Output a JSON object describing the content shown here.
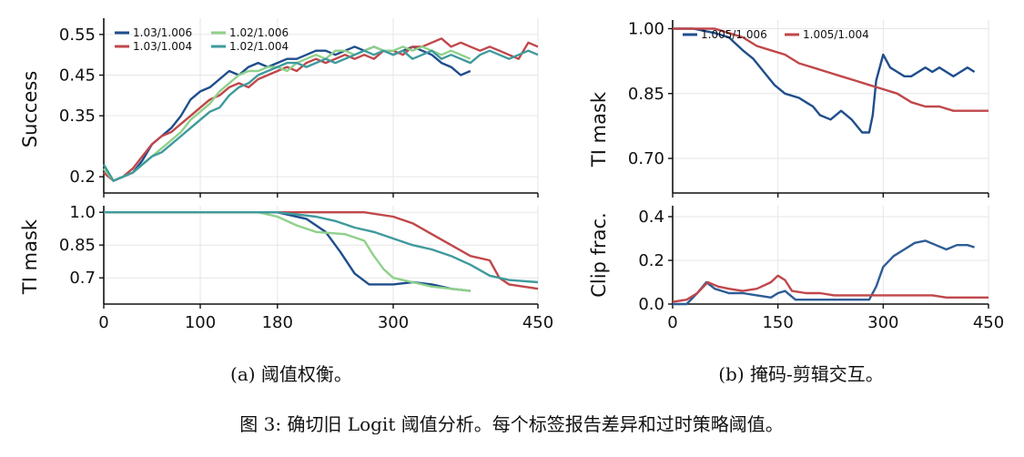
{
  "colors": {
    "dark_blue": "#1f4e8c",
    "red": "#c0474a",
    "light_green": "#8fd18a",
    "teal": "#3f9a9c",
    "blue_b": "#2e5d96",
    "red_b": "#c0474a"
  },
  "chart_data": [
    {
      "panel": "a-top",
      "type": "line",
      "ylabel": "Success",
      "xlim": [
        0,
        450
      ],
      "ylim": [
        0.16,
        0.59
      ],
      "yticks": [
        0.2,
        0.35,
        0.45,
        0.55
      ],
      "ytick_labels": [
        "0.2",
        "0.35",
        "0.45",
        "0.55"
      ],
      "legend_position": "top-left",
      "series": [
        {
          "name": "1.03/1.006",
          "color": "#1f4e8c",
          "x": [
            0,
            10,
            20,
            30,
            40,
            50,
            60,
            70,
            80,
            90,
            100,
            110,
            120,
            130,
            140,
            150,
            160,
            170,
            180,
            190,
            200,
            210,
            220,
            230,
            240,
            250,
            260,
            270,
            280,
            290,
            300,
            310,
            320,
            330,
            340,
            350,
            360,
            370,
            380
          ],
          "y": [
            0.22,
            0.19,
            0.2,
            0.21,
            0.24,
            0.28,
            0.3,
            0.32,
            0.35,
            0.39,
            0.41,
            0.42,
            0.44,
            0.46,
            0.45,
            0.47,
            0.48,
            0.47,
            0.48,
            0.49,
            0.49,
            0.5,
            0.51,
            0.51,
            0.5,
            0.51,
            0.52,
            0.51,
            0.52,
            0.51,
            0.5,
            0.51,
            0.52,
            0.51,
            0.5,
            0.48,
            0.47,
            0.45,
            0.46
          ]
        },
        {
          "name": "1.03/1.004",
          "color": "#c0474a",
          "x": [
            0,
            10,
            20,
            30,
            40,
            50,
            60,
            70,
            80,
            90,
            100,
            110,
            120,
            130,
            140,
            150,
            160,
            170,
            180,
            190,
            200,
            210,
            220,
            230,
            240,
            250,
            260,
            270,
            280,
            290,
            300,
            310,
            320,
            330,
            340,
            350,
            360,
            370,
            380,
            390,
            400,
            410,
            420,
            430,
            440,
            450
          ],
          "y": [
            0.21,
            0.19,
            0.2,
            0.22,
            0.25,
            0.28,
            0.3,
            0.31,
            0.33,
            0.35,
            0.37,
            0.39,
            0.4,
            0.42,
            0.43,
            0.42,
            0.44,
            0.45,
            0.46,
            0.47,
            0.46,
            0.48,
            0.49,
            0.48,
            0.49,
            0.5,
            0.49,
            0.5,
            0.49,
            0.51,
            0.51,
            0.5,
            0.52,
            0.52,
            0.53,
            0.54,
            0.52,
            0.53,
            0.52,
            0.51,
            0.52,
            0.51,
            0.5,
            0.49,
            0.53,
            0.52
          ]
        },
        {
          "name": "1.02/1.006",
          "color": "#8fd18a",
          "x": [
            0,
            10,
            20,
            30,
            40,
            50,
            60,
            70,
            80,
            90,
            100,
            110,
            120,
            130,
            140,
            150,
            160,
            170,
            180,
            190,
            200,
            210,
            220,
            230,
            240,
            250,
            260,
            270,
            280,
            290,
            300,
            310,
            320,
            330,
            340,
            350,
            360,
            370,
            380
          ],
          "y": [
            0.22,
            0.19,
            0.2,
            0.21,
            0.23,
            0.25,
            0.27,
            0.29,
            0.31,
            0.34,
            0.36,
            0.38,
            0.41,
            0.43,
            0.45,
            0.46,
            0.46,
            0.47,
            0.47,
            0.46,
            0.48,
            0.49,
            0.5,
            0.49,
            0.51,
            0.51,
            0.5,
            0.51,
            0.52,
            0.51,
            0.51,
            0.52,
            0.51,
            0.52,
            0.51,
            0.5,
            0.51,
            0.5,
            0.49
          ]
        },
        {
          "name": "1.02/1.004",
          "color": "#3f9a9c",
          "x": [
            0,
            10,
            20,
            30,
            40,
            50,
            60,
            70,
            80,
            90,
            100,
            110,
            120,
            130,
            140,
            150,
            160,
            170,
            180,
            190,
            200,
            210,
            220,
            230,
            240,
            250,
            260,
            270,
            280,
            290,
            300,
            310,
            320,
            330,
            340,
            350,
            360,
            370,
            380,
            390,
            400,
            410,
            420,
            430,
            440,
            450
          ],
          "y": [
            0.23,
            0.19,
            0.2,
            0.21,
            0.23,
            0.25,
            0.26,
            0.28,
            0.3,
            0.32,
            0.34,
            0.36,
            0.37,
            0.4,
            0.42,
            0.43,
            0.45,
            0.46,
            0.47,
            0.48,
            0.48,
            0.47,
            0.48,
            0.49,
            0.48,
            0.49,
            0.5,
            0.51,
            0.5,
            0.51,
            0.5,
            0.51,
            0.49,
            0.5,
            0.51,
            0.49,
            0.5,
            0.49,
            0.48,
            0.5,
            0.51,
            0.5,
            0.49,
            0.5,
            0.51,
            0.5
          ]
        }
      ]
    },
    {
      "panel": "a-bottom",
      "type": "line",
      "ylabel": "TI mask",
      "xlim": [
        0,
        450
      ],
      "ylim": [
        0.58,
        1.03
      ],
      "yticks": [
        0.7,
        0.85,
        1.0
      ],
      "ytick_labels": [
        "0.7",
        "0.85",
        "1.0"
      ],
      "xticks": [
        0,
        100,
        180,
        300,
        450
      ],
      "xtick_labels": [
        "0",
        "100",
        "180",
        "300",
        "450"
      ],
      "series": [
        {
          "name": "1.03/1.006",
          "color": "#1f4e8c",
          "x": [
            0,
            60,
            120,
            180,
            210,
            230,
            245,
            260,
            275,
            290,
            300,
            320,
            340,
            360,
            380
          ],
          "y": [
            1.0,
            1.0,
            1.0,
            1.0,
            0.97,
            0.91,
            0.82,
            0.72,
            0.67,
            0.67,
            0.67,
            0.68,
            0.67,
            0.65,
            0.64
          ]
        },
        {
          "name": "1.03/1.004",
          "color": "#c0474a",
          "x": [
            0,
            60,
            120,
            180,
            240,
            270,
            300,
            320,
            340,
            360,
            380,
            400,
            410,
            420,
            450
          ],
          "y": [
            1.0,
            1.0,
            1.0,
            1.0,
            1.0,
            1.0,
            0.98,
            0.95,
            0.9,
            0.85,
            0.8,
            0.78,
            0.7,
            0.67,
            0.65
          ]
        },
        {
          "name": "1.02/1.006",
          "color": "#8fd18a",
          "x": [
            0,
            60,
            120,
            160,
            180,
            200,
            220,
            250,
            270,
            280,
            290,
            300,
            320,
            340,
            360,
            380
          ],
          "y": [
            1.0,
            1.0,
            1.0,
            1.0,
            0.98,
            0.94,
            0.91,
            0.9,
            0.87,
            0.8,
            0.74,
            0.7,
            0.68,
            0.66,
            0.65,
            0.64
          ]
        },
        {
          "name": "1.02/1.004",
          "color": "#3f9a9c",
          "x": [
            0,
            60,
            120,
            180,
            200,
            220,
            240,
            260,
            280,
            300,
            320,
            340,
            360,
            380,
            400,
            420,
            450
          ],
          "y": [
            1.0,
            1.0,
            1.0,
            1.0,
            0.99,
            0.98,
            0.96,
            0.93,
            0.91,
            0.88,
            0.85,
            0.83,
            0.8,
            0.76,
            0.71,
            0.69,
            0.68
          ]
        }
      ]
    },
    {
      "panel": "b-top",
      "type": "line",
      "ylabel": "TI mask",
      "xlim": [
        0,
        450
      ],
      "ylim": [
        0.62,
        1.02
      ],
      "yticks": [
        0.7,
        0.85,
        1.0
      ],
      "ytick_labels": [
        "0.70",
        "0.85",
        "1.00"
      ],
      "legend_position": "top",
      "series": [
        {
          "name": "1.005/1.006",
          "color": "#1f4e8c",
          "x": [
            0,
            30,
            60,
            80,
            100,
            115,
            130,
            145,
            160,
            180,
            190,
            200,
            210,
            225,
            240,
            255,
            270,
            280,
            285,
            290,
            300,
            310,
            320,
            330,
            340,
            350,
            360,
            370,
            380,
            390,
            400,
            410,
            420,
            430
          ],
          "y": [
            1.0,
            1.0,
            0.99,
            0.98,
            0.95,
            0.93,
            0.9,
            0.87,
            0.85,
            0.84,
            0.83,
            0.82,
            0.8,
            0.79,
            0.81,
            0.79,
            0.76,
            0.76,
            0.8,
            0.88,
            0.94,
            0.91,
            0.9,
            0.89,
            0.89,
            0.9,
            0.91,
            0.9,
            0.91,
            0.9,
            0.89,
            0.9,
            0.91,
            0.9
          ]
        },
        {
          "name": "1.005/1.004",
          "color": "#c0474a",
          "x": [
            0,
            30,
            60,
            80,
            100,
            120,
            140,
            160,
            180,
            200,
            220,
            240,
            260,
            280,
            300,
            320,
            340,
            360,
            380,
            400,
            420,
            440,
            450
          ],
          "y": [
            1.0,
            1.0,
            1.0,
            0.99,
            0.98,
            0.96,
            0.95,
            0.94,
            0.92,
            0.91,
            0.9,
            0.89,
            0.88,
            0.87,
            0.86,
            0.85,
            0.83,
            0.82,
            0.82,
            0.81,
            0.81,
            0.81,
            0.81
          ]
        }
      ]
    },
    {
      "panel": "b-bottom",
      "type": "line",
      "ylabel": "Clip frac.",
      "xlim": [
        0,
        450
      ],
      "ylim": [
        0.0,
        0.45
      ],
      "yticks": [
        0.0,
        0.2,
        0.4
      ],
      "ytick_labels": [
        "0.0",
        "0.2",
        "0.4"
      ],
      "xticks": [
        0,
        150,
        300,
        450
      ],
      "xtick_labels": [
        "0",
        "150",
        "300",
        "450"
      ],
      "series": [
        {
          "name": "1.005/1.006",
          "color": "#2e5d96",
          "x": [
            0,
            20,
            35,
            48,
            60,
            80,
            100,
            120,
            140,
            150,
            160,
            175,
            200,
            230,
            260,
            280,
            290,
            300,
            315,
            330,
            345,
            360,
            375,
            390,
            405,
            420,
            430
          ],
          "y": [
            0.0,
            0.0,
            0.05,
            0.1,
            0.07,
            0.05,
            0.05,
            0.04,
            0.03,
            0.05,
            0.06,
            0.02,
            0.02,
            0.02,
            0.02,
            0.02,
            0.08,
            0.17,
            0.22,
            0.25,
            0.28,
            0.29,
            0.27,
            0.25,
            0.27,
            0.27,
            0.26
          ]
        },
        {
          "name": "1.005/1.004",
          "color": "#c0474a",
          "x": [
            0,
            20,
            35,
            50,
            65,
            80,
            100,
            120,
            140,
            150,
            160,
            170,
            190,
            210,
            230,
            250,
            270,
            290,
            310,
            330,
            350,
            370,
            390,
            410,
            430,
            450
          ],
          "y": [
            0.01,
            0.02,
            0.05,
            0.1,
            0.08,
            0.07,
            0.06,
            0.07,
            0.1,
            0.13,
            0.11,
            0.06,
            0.05,
            0.05,
            0.04,
            0.04,
            0.04,
            0.04,
            0.04,
            0.04,
            0.04,
            0.04,
            0.03,
            0.03,
            0.03,
            0.03
          ]
        }
      ]
    }
  ],
  "captions": {
    "a": "(a) 阈值权衡。",
    "b": "(b) 掩码-剪辑交互。",
    "figure": "图 3: 确切旧 Logit 阈值分析。每个标签报告差异和过时策略阈值。"
  }
}
